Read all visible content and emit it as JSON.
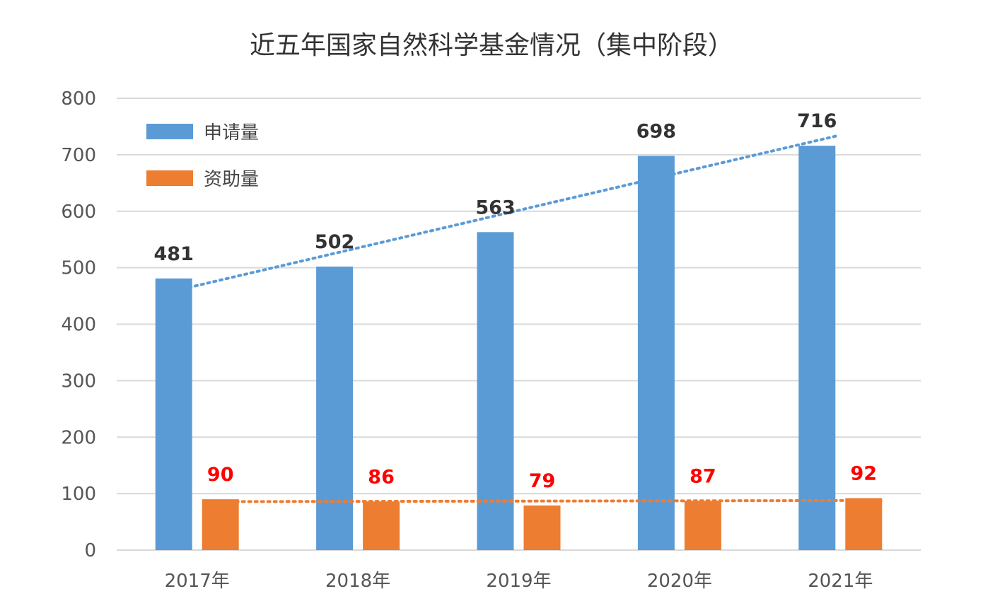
{
  "chart_data": {
    "type": "bar",
    "title": "近五年国家自然科学基金情况（集中阶段）",
    "categories": [
      "2017年",
      "2018年",
      "2019年",
      "2020年",
      "2021年"
    ],
    "series": [
      {
        "name": "申请量",
        "values": [
          481,
          502,
          563,
          698,
          716
        ],
        "color": "#5b9bd5",
        "label_color": "#333333",
        "trendline": "linear"
      },
      {
        "name": "资助量",
        "values": [
          90,
          86,
          79,
          87,
          92
        ],
        "color": "#ed7d31",
        "label_color": "#ff0000",
        "trendline": "linear"
      }
    ],
    "ylim": [
      0,
      800
    ],
    "yticks": [
      "0",
      "100",
      "200",
      "300",
      "400",
      "500",
      "600",
      "700",
      "800"
    ],
    "xlabel": "",
    "ylabel": "",
    "grid": true,
    "legend": "top-left"
  }
}
